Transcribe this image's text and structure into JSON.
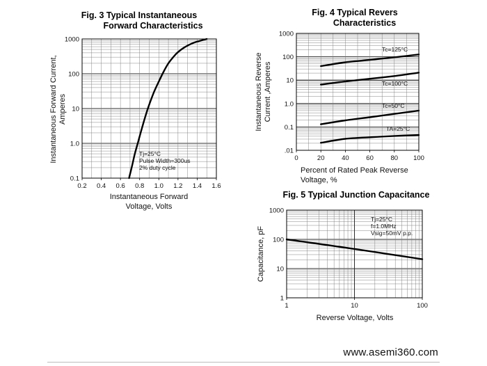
{
  "chart_data": [
    {
      "id": "fig3",
      "type": "line",
      "title_lines": [
        "Fig. 3 Typical Instantaneous",
        "Forward Characteristics"
      ],
      "xlabel_lines": [
        "Instantaneous Forward",
        "Voltage, Volts"
      ],
      "ylabel_lines": [
        "Instantaneous Forward Current,",
        "Amperes"
      ],
      "x_scale": "linear",
      "y_scale": "log",
      "xlim": [
        0.2,
        1.6
      ],
      "ylim": [
        0.1,
        1000
      ],
      "x_ticks": [
        0.2,
        0.4,
        0.6,
        0.8,
        1.0,
        1.2,
        1.4,
        1.6
      ],
      "x_tick_labels": [
        "0.2",
        "0.4",
        "0.6",
        "0.8",
        "1.0",
        "1.2",
        "1.4",
        "1.6"
      ],
      "y_ticks": [
        0.1,
        1,
        10,
        100,
        1000
      ],
      "y_tick_labels": [
        "0.1",
        "1.0",
        "10",
        "100",
        "1000"
      ],
      "grid": true,
      "annotations": [
        "Tj=25°C",
        "Pulse Width=300us",
        "2% duty cycle"
      ],
      "series": [
        {
          "x": [
            0.69,
            0.72,
            0.75,
            0.78,
            0.82,
            0.86,
            0.9,
            0.95,
            1.0,
            1.05,
            1.1,
            1.15,
            1.2,
            1.27,
            1.35,
            1.42,
            1.5
          ],
          "y": [
            0.1,
            0.22,
            0.5,
            1.0,
            2.5,
            6,
            13,
            30,
            60,
            115,
            200,
            300,
            420,
            580,
            750,
            870,
            1000
          ]
        }
      ]
    },
    {
      "id": "fig4",
      "type": "line",
      "title_lines": [
        "Fig. 4 Typical Revers",
        "Characteristics"
      ],
      "xlabel_lines": [
        "Percent of Rated Peak Reverse",
        "Voltage, %"
      ],
      "ylabel_lines": [
        "Instantaneous Reverse",
        "Current ,Amperes"
      ],
      "x_scale": "linear",
      "y_scale": "log",
      "xlim": [
        0,
        100
      ],
      "ylim": [
        0.01,
        1000
      ],
      "x_ticks": [
        0,
        20,
        40,
        60,
        80,
        100
      ],
      "x_tick_labels": [
        "0",
        "20",
        "40",
        "60",
        "80",
        "100"
      ],
      "y_ticks": [
        0.01,
        0.1,
        1,
        10,
        100,
        1000
      ],
      "y_tick_labels": [
        ".01",
        "0.1",
        "1.0",
        "10",
        "100",
        "1000"
      ],
      "grid": true,
      "series": [
        {
          "name": "Tc=125°C",
          "x": [
            20,
            40,
            60,
            80,
            100
          ],
          "y": [
            40,
            58,
            74,
            95,
            125
          ]
        },
        {
          "name": "Tc=100°C",
          "x": [
            20,
            40,
            60,
            80,
            100
          ],
          "y": [
            6.5,
            8.8,
            11.5,
            15,
            21
          ]
        },
        {
          "name": "Tc=50°C",
          "x": [
            20,
            40,
            60,
            80,
            100
          ],
          "y": [
            0.13,
            0.19,
            0.26,
            0.36,
            0.5
          ]
        },
        {
          "name": "TA=25°C",
          "x": [
            20,
            40,
            60,
            80,
            100
          ],
          "y": [
            0.021,
            0.031,
            0.036,
            0.041,
            0.045
          ]
        }
      ]
    },
    {
      "id": "fig5",
      "type": "line",
      "title_lines": [
        "Fig. 5 Typical Junction Capacitance"
      ],
      "xlabel_lines": [
        "Reverse Voltage, Volts"
      ],
      "ylabel_lines": [
        "Capacitance, pF"
      ],
      "x_scale": "log",
      "y_scale": "log",
      "xlim": [
        1,
        100
      ],
      "ylim": [
        1,
        1000
      ],
      "x_ticks": [
        1,
        10,
        100
      ],
      "x_tick_labels": [
        "1",
        "10",
        "100"
      ],
      "y_ticks": [
        1,
        10,
        100,
        1000
      ],
      "y_tick_labels": [
        "1",
        "10",
        "100",
        "1000"
      ],
      "grid": true,
      "annotations": [
        "Tj=25°C",
        "f=1.0MHz",
        "Vsig=50mV p.p."
      ],
      "series": [
        {
          "x": [
            1,
            3,
            10,
            30,
            100
          ],
          "y": [
            100,
            70,
            47,
            32,
            21
          ]
        }
      ]
    }
  ],
  "footer": {
    "website": "www.asemi360.com"
  }
}
